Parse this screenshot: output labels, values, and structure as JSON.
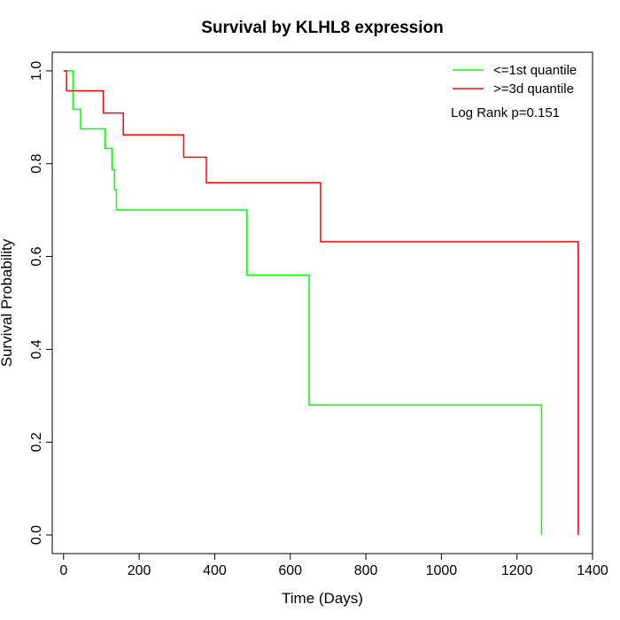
{
  "chart_data": {
    "type": "line",
    "title": "Survival by KLHL8 expression",
    "xlabel": "Time (Days)",
    "ylabel": "Survival Probability",
    "xlim": [
      -30,
      1400
    ],
    "ylim": [
      -0.04,
      1.04
    ],
    "xticks": [
      0,
      200,
      400,
      600,
      800,
      1000,
      1200,
      1400
    ],
    "yticks": [
      0.0,
      0.2,
      0.4,
      0.6,
      0.8,
      1.0
    ],
    "xtick_labels": [
      "0",
      "200",
      "400",
      "600",
      "800",
      "1000",
      "1200",
      "1400"
    ],
    "ytick_labels": [
      "0.0",
      "0.2",
      "0.4",
      "0.6",
      "0.8",
      "1.0"
    ],
    "grid": false,
    "legend_position": "top-right",
    "series": [
      {
        "name": "<=1st quantile",
        "color": "#00ff00",
        "step": true,
        "x": [
          0,
          25,
          45,
          110,
          128,
          135,
          140,
          485,
          650,
          1265
        ],
        "y": [
          1.0,
          0.917,
          0.875,
          0.833,
          0.787,
          0.744,
          0.7,
          0.56,
          0.28,
          0.0
        ]
      },
      {
        "name": ">=3d quantile",
        "color": "#ff0000",
        "step": true,
        "x": [
          0,
          8,
          105,
          158,
          318,
          378,
          680,
          1362
        ],
        "y": [
          1.0,
          0.957,
          0.909,
          0.862,
          0.814,
          0.759,
          0.632,
          0.0
        ]
      }
    ],
    "annotations": [
      "Log Rank p=0.151"
    ]
  }
}
